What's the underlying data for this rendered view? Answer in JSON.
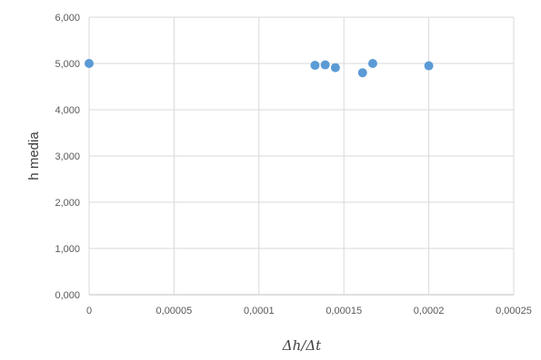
{
  "chart_data": {
    "type": "scatter",
    "title": "",
    "xlabel": "Δh/Δt",
    "ylabel": "h media",
    "xlim": [
      0,
      0.00025
    ],
    "ylim": [
      0,
      6000
    ],
    "x_ticks": [
      {
        "value": 0,
        "label": "0"
      },
      {
        "value": 5e-05,
        "label": "0,00005"
      },
      {
        "value": 0.0001,
        "label": "0,0001"
      },
      {
        "value": 0.00015,
        "label": "0,00015"
      },
      {
        "value": 0.0002,
        "label": "0,0002"
      },
      {
        "value": 0.00025,
        "label": "0,00025"
      }
    ],
    "y_ticks": [
      {
        "value": 0,
        "label": "0,000"
      },
      {
        "value": 1000,
        "label": "1,000"
      },
      {
        "value": 2000,
        "label": "2,000"
      },
      {
        "value": 3000,
        "label": "3,000"
      },
      {
        "value": 4000,
        "label": "4,000"
      },
      {
        "value": 5000,
        "label": "5,000"
      },
      {
        "value": 6000,
        "label": "6,000"
      }
    ],
    "grid": true,
    "legend": "none",
    "marker_color": "#5b9bd5",
    "series": [
      {
        "points": [
          {
            "x": 0,
            "y": 5000
          },
          {
            "x": 0.000133,
            "y": 4960
          },
          {
            "x": 0.000139,
            "y": 4970
          },
          {
            "x": 0.000145,
            "y": 4910
          },
          {
            "x": 0.000161,
            "y": 4800
          },
          {
            "x": 0.000167,
            "y": 5000
          },
          {
            "x": 0.0002,
            "y": 4950
          }
        ]
      }
    ]
  }
}
